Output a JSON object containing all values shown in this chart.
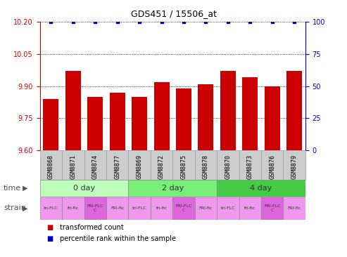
{
  "title": "GDS451 / 15506_at",
  "samples": [
    "GSM8868",
    "GSM8871",
    "GSM8874",
    "GSM8877",
    "GSM8869",
    "GSM8872",
    "GSM8875",
    "GSM8878",
    "GSM8870",
    "GSM8873",
    "GSM8876",
    "GSM8879"
  ],
  "bar_values": [
    9.84,
    9.97,
    9.85,
    9.87,
    9.85,
    9.92,
    9.89,
    9.91,
    9.97,
    9.94,
    9.9,
    9.97
  ],
  "percentile_values": [
    100,
    100,
    100,
    100,
    100,
    100,
    100,
    100,
    100,
    100,
    100,
    100
  ],
  "ylim": [
    9.6,
    10.2
  ],
  "yticks_left": [
    9.6,
    9.75,
    9.9,
    10.05,
    10.2
  ],
  "yticks_right": [
    0,
    25,
    50,
    75,
    100
  ],
  "bar_color": "#cc0000",
  "dot_color": "#0000cc",
  "time_groups": [
    {
      "label": "0 day",
      "start": 0,
      "end": 4,
      "color": "#bbffbb"
    },
    {
      "label": "2 day",
      "start": 4,
      "end": 8,
      "color": "#77ee77"
    },
    {
      "label": "4 day",
      "start": 8,
      "end": 12,
      "color": "#44cc44"
    }
  ],
  "strain_labels": [
    "tri-FLC",
    "fri-flc",
    "FRI-FLC\nC",
    "FRI-flc",
    "tri-FLC",
    "fri-flc",
    "FRI-FLC\nC",
    "FRI-flc",
    "tri-FLC",
    "fri-flc",
    "FRI-FLC\nC",
    "FRI-flc"
  ],
  "strain_color_light": "#ee99ee",
  "strain_color_mid": "#dd66dd",
  "legend_items": [
    {
      "color": "#cc0000",
      "label": "transformed count"
    },
    {
      "color": "#0000cc",
      "label": "percentile rank within the sample"
    }
  ],
  "bg_color": "#ffffff",
  "grid_color": "#000000",
  "sample_bg": "#cccccc",
  "label_fontsize": 8,
  "tick_fontsize": 7,
  "sample_fontsize": 6
}
